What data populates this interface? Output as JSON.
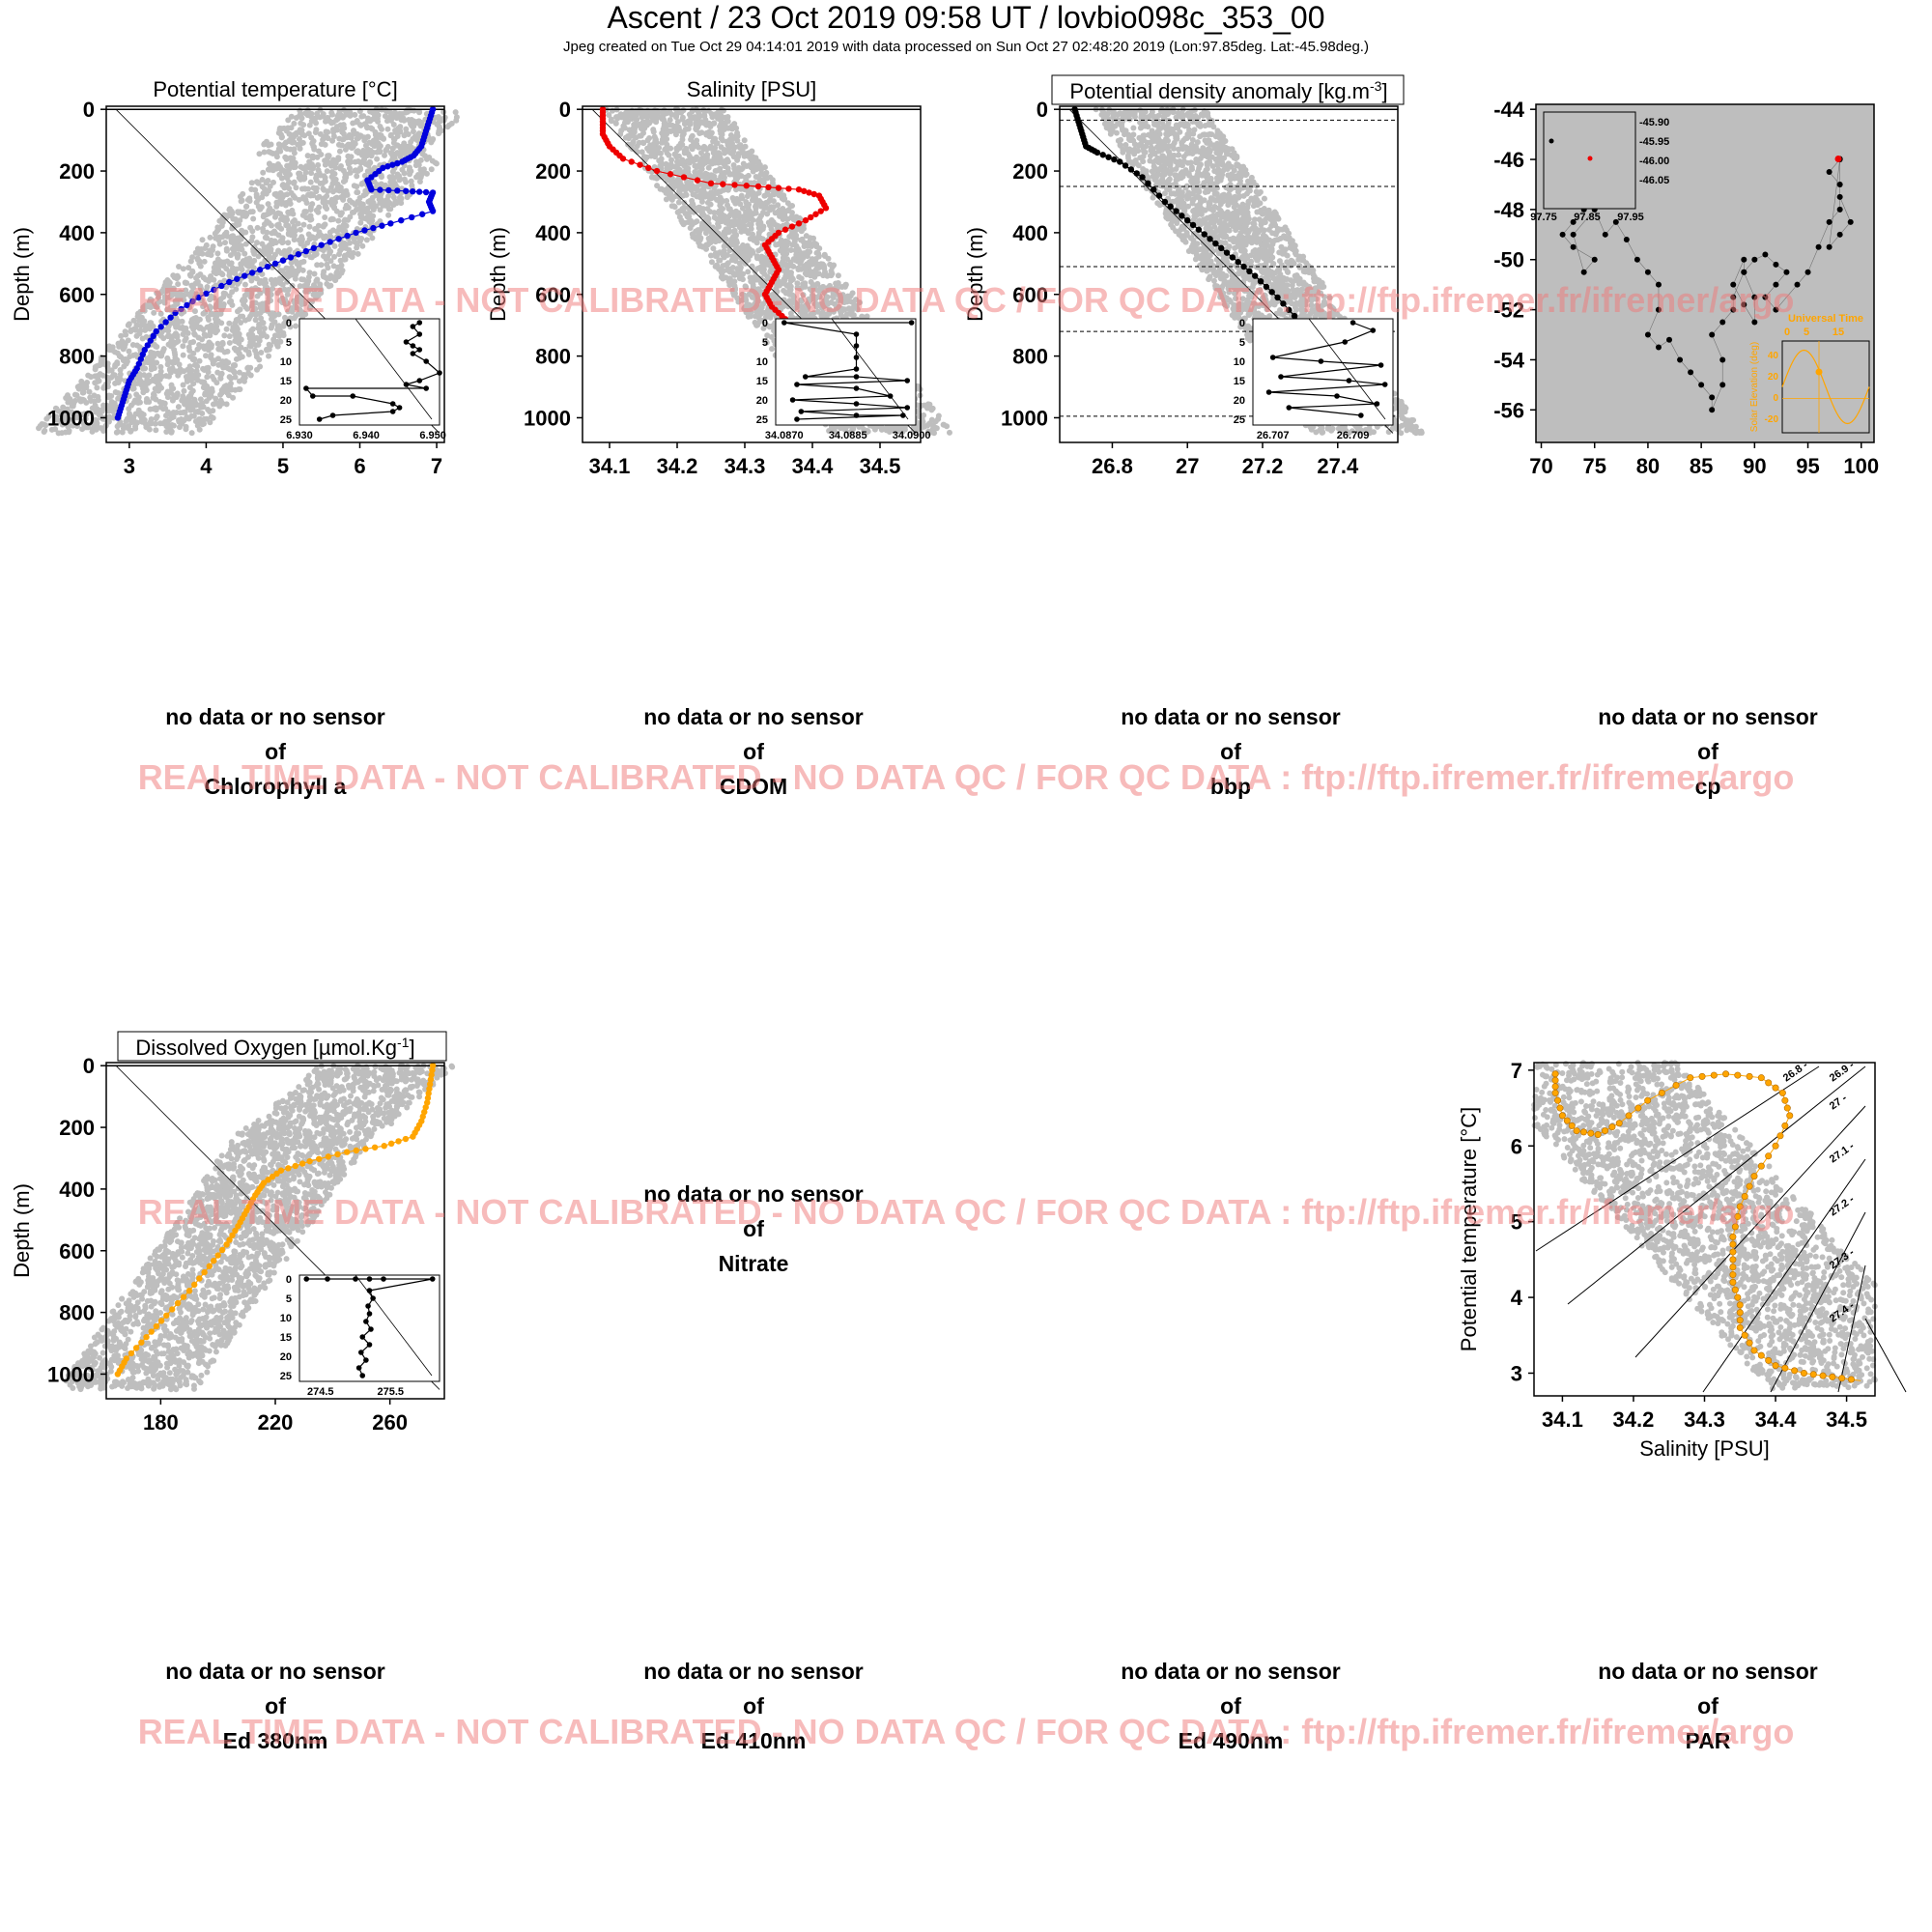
{
  "header": {
    "title": "Ascent / 23 Oct 2019 09:58 UT /  lovbio098c_353_00",
    "subtitle": "Jpeg created on Tue Oct 29 04:14:01 2019 with data processed on Sun Oct 27 02:48:20 2019 (Lon:97.85deg. Lat:-45.98deg.)"
  },
  "watermark": "REAL TIME DATA - NOT CALIBRATED - NO DATA QC   /  FOR QC DATA : ftp://ftp.ifremer.fr/ifremer/argo",
  "colors": {
    "temperature": "#0000dd",
    "salinity": "#ee0000",
    "density": "#000000",
    "oxygen": "#ffa500",
    "background_cloud": "#bebebe",
    "watermark": "#f07878"
  },
  "no_data": {
    "line1": "no data or no sensor",
    "line2": "of",
    "chlorophyll": "Chlorophyll a",
    "cdom": "CDOM",
    "bbp": "bbp",
    "cp": "cp",
    "nitrate": "Nitrate",
    "ed380": "Ed 380nm",
    "ed410": "Ed 410nm",
    "ed490": "Ed 490nm",
    "par": "PAR"
  },
  "chart_data": [
    {
      "id": "temperature",
      "type": "scatter",
      "title": "Potential temperature [°C]",
      "ylabel": "Depth (m)",
      "xlim": [
        2.7,
        7.1
      ],
      "ylim": [
        1080,
        -10
      ],
      "xticks": [
        3,
        4,
        5,
        6,
        7
      ],
      "yticks": [
        0,
        200,
        400,
        600,
        800,
        1000
      ],
      "profile": {
        "x": [
          6.95,
          6.9,
          6.85,
          6.8,
          6.7,
          6.55,
          6.3,
          6.1,
          6.15,
          6.6,
          6.95,
          6.9,
          6.95,
          6.4,
          5.95,
          5.5,
          5.1,
          4.7,
          4.3,
          3.9,
          3.6,
          3.35,
          3.2,
          3.1,
          3.0,
          2.95,
          2.9,
          2.85
        ],
        "y": [
          0,
          40,
          80,
          120,
          150,
          170,
          190,
          230,
          260,
          265,
          270,
          300,
          330,
          370,
          400,
          440,
          480,
          520,
          560,
          610,
          660,
          720,
          780,
          840,
          880,
          920,
          960,
          1000
        ]
      },
      "inset": {
        "xlim": [
          6.93,
          6.951
        ],
        "ylim": [
          25,
          0
        ],
        "xticks": [
          "6.930",
          "6.940",
          "6.950"
        ],
        "yticks": [
          0,
          5,
          10,
          15,
          20,
          25
        ],
        "x": [
          6.948,
          6.947,
          6.948,
          6.946,
          6.947,
          6.948,
          6.947,
          6.949,
          6.951,
          6.948,
          6.946,
          6.949,
          6.931,
          6.932,
          6.938,
          6.944,
          6.945,
          6.944,
          6.935,
          6.933
        ],
        "y": [
          0,
          1,
          3,
          5,
          6,
          7,
          8,
          10,
          13,
          15,
          16,
          17,
          17,
          19,
          19,
          21,
          22,
          23,
          24,
          25
        ]
      }
    },
    {
      "id": "salinity",
      "type": "scatter",
      "title": "Salinity [PSU]",
      "ylabel": "Depth (m)",
      "xlim": [
        34.06,
        34.56
      ],
      "ylim": [
        1080,
        -10
      ],
      "xticks": [
        34.1,
        34.2,
        34.3,
        34.4,
        34.5
      ],
      "yticks": [
        0,
        200,
        400,
        600,
        800,
        1000
      ],
      "profile": {
        "x": [
          34.09,
          34.09,
          34.09,
          34.1,
          34.12,
          34.17,
          34.25,
          34.32,
          34.38,
          34.41,
          34.42,
          34.39,
          34.35,
          34.33,
          34.34,
          34.35,
          34.34,
          34.33,
          34.34,
          34.36,
          34.38,
          34.41,
          34.44,
          34.47,
          34.5,
          34.53
        ],
        "y": [
          0,
          40,
          80,
          120,
          160,
          200,
          240,
          250,
          260,
          280,
          320,
          360,
          400,
          440,
          480,
          520,
          560,
          600,
          640,
          680,
          720,
          780,
          840,
          900,
          950,
          1000
        ]
      },
      "inset": {
        "xlim": [
          34.0868,
          34.0901
        ],
        "ylim": [
          25,
          0
        ],
        "xticks": [
          "34.0870",
          "34.0885",
          "34.0900"
        ],
        "yticks": [
          0,
          5,
          10,
          15,
          20,
          25
        ],
        "x": [
          34.09,
          34.087,
          34.0887,
          34.0887,
          34.0887,
          34.0887,
          34.0875,
          34.0887,
          34.0899,
          34.0873,
          34.0887,
          34.0895,
          34.0872,
          34.0887,
          34.0899,
          34.0874,
          34.0887,
          34.0898,
          34.0873
        ],
        "y": [
          0,
          0,
          3,
          6,
          9,
          12,
          14,
          14,
          15,
          16,
          17,
          19,
          20,
          21,
          22,
          23,
          24,
          24,
          25
        ]
      }
    },
    {
      "id": "density",
      "type": "scatter",
      "title": "Potential density anomaly [kg.m-3]",
      "ylabel": "Depth (m)",
      "xlim": [
        26.66,
        27.56
      ],
      "ylim": [
        1080,
        -10
      ],
      "xticks": [
        26.8,
        27.0,
        27.2,
        27.4
      ],
      "yticks": [
        0,
        200,
        400,
        600,
        800,
        1000
      ],
      "mld_lines": [
        35,
        250,
        510,
        720,
        995
      ],
      "profile": {
        "x": [
          26.7,
          26.71,
          26.72,
          26.73,
          26.76,
          26.82,
          26.88,
          26.94,
          27.0,
          27.06,
          27.12,
          27.18,
          27.24,
          27.3,
          27.36,
          27.42,
          27.48,
          27.53
        ],
        "y": [
          0,
          40,
          80,
          120,
          140,
          170,
          220,
          300,
          360,
          420,
          480,
          540,
          610,
          690,
          770,
          850,
          930,
          1000
        ]
      },
      "inset": {
        "xlim": [
          26.7065,
          26.71
        ],
        "ylim": [
          25,
          0
        ],
        "xticks": [
          "26.707",
          "26.709"
        ],
        "yticks": [
          0,
          5,
          10,
          15,
          20,
          25
        ],
        "x": [
          26.709,
          26.7095,
          26.7088,
          26.707,
          26.7082,
          26.7097,
          26.7072,
          26.7089,
          26.7098,
          26.7069,
          26.7086,
          26.7096,
          26.7074,
          26.7092
        ],
        "y": [
          0,
          2,
          5,
          9,
          10,
          11,
          14,
          15,
          16,
          18,
          19,
          21,
          22,
          24
        ]
      }
    },
    {
      "id": "map",
      "type": "scatter",
      "title": "",
      "xlim": [
        69.5,
        101.2
      ],
      "ylim": [
        -57.3,
        -43.8
      ],
      "xticks": [
        70,
        75,
        80,
        85,
        90,
        95,
        100
      ],
      "yticks": [
        -44,
        -46,
        -48,
        -50,
        -52,
        -54,
        -56
      ],
      "track": {
        "lon": [
          74,
          73,
          72,
          73,
          75,
          74,
          73,
          75,
          76,
          77,
          78,
          79,
          80,
          81,
          81,
          80,
          81,
          82,
          83,
          84,
          85,
          86,
          86,
          87,
          87,
          86,
          87,
          88,
          88,
          89,
          89,
          88,
          89,
          90,
          90,
          89,
          90,
          91,
          92,
          93,
          92,
          91,
          92,
          94,
          95,
          96,
          97,
          98,
          98,
          97,
          98,
          98,
          99,
          98,
          97,
          98
        ],
        "lat": [
          -48,
          -48.5,
          -49,
          -49.5,
          -50,
          -50.5,
          -49,
          -48,
          -49,
          -48.5,
          -49.2,
          -50,
          -50.5,
          -51,
          -52,
          -53,
          -53.5,
          -53.2,
          -54,
          -54.5,
          -55,
          -55.5,
          -56,
          -55,
          -54,
          -53,
          -52.5,
          -52,
          -51.5,
          -50.5,
          -50,
          -51,
          -51.8,
          -52.5,
          -51.5,
          -50.5,
          -50,
          -49.8,
          -50.2,
          -50.5,
          -51,
          -51.5,
          -52,
          -51,
          -50.5,
          -49.5,
          -48.5,
          -48,
          -47,
          -46.5,
          -46,
          -47.5,
          -48.5,
          -49,
          -49.5,
          -45.98
        ]
      },
      "last_position": {
        "lon": 97.85,
        "lat": -45.98
      },
      "inset": {
        "xlim": [
          97.75,
          97.95
        ],
        "ylim": [
          -46.08,
          -45.88
        ],
        "xticks": [
          "97.75",
          "97.85",
          "97.95"
        ],
        "yticks": [
          "-45.90",
          "-45.95",
          "-46.00",
          "-46.05"
        ]
      },
      "sun_inset": {
        "title": "Universal Time",
        "ylabel": "Solar Elevation (deg)",
        "xticks": [
          0,
          5,
          15
        ],
        "yticks": [
          40,
          20,
          0,
          -20
        ]
      }
    },
    {
      "id": "oxygen",
      "type": "scatter",
      "title": "Dissolved Oxygen [µmol.Kg-1]",
      "ylabel": "Depth (m)",
      "xlim": [
        161,
        279
      ],
      "ylim": [
        1080,
        -10
      ],
      "xticks": [
        180,
        220,
        260
      ],
      "yticks": [
        0,
        200,
        400,
        600,
        800,
        1000
      ],
      "profile": {
        "x": [
          275,
          274,
          273,
          271,
          268,
          258,
          245,
          232,
          222,
          216,
          213,
          210,
          207,
          203,
          197,
          190,
          182,
          175,
          168,
          165
        ],
        "y": [
          0,
          60,
          120,
          180,
          230,
          260,
          280,
          310,
          340,
          380,
          420,
          470,
          520,
          580,
          650,
          730,
          810,
          880,
          950,
          1000
        ]
      },
      "inset": {
        "xlim": [
          274.2,
          276.2
        ],
        "ylim": [
          25,
          0
        ],
        "xticks": [
          "274.5",
          "275.5"
        ],
        "yticks": [
          0,
          5,
          10,
          15,
          20,
          25
        ],
        "x": [
          274.3,
          274.6,
          275.0,
          275.2,
          275.4,
          276.1,
          275.2,
          275.25,
          275.18,
          275.2,
          275.15,
          275.22,
          275.1,
          275.2,
          275.08,
          275.15,
          275.05,
          275.1
        ],
        "y": [
          0,
          0,
          0,
          0,
          0,
          0,
          3,
          5,
          7,
          9,
          11,
          13,
          15,
          17,
          19,
          21,
          23,
          25
        ]
      }
    },
    {
      "id": "ts",
      "type": "scatter",
      "title": "",
      "xlabel": "Salinity [PSU]",
      "ylabel": "Potential temperature [°C]",
      "xlim": [
        34.06,
        34.54
      ],
      "ylim": [
        2.7,
        7.1
      ],
      "xticks": [
        34.1,
        34.2,
        34.3,
        34.4,
        34.5
      ],
      "yticks": [
        3,
        4,
        5,
        6,
        7
      ],
      "isopycnals": [
        "26.8",
        "26.9",
        "27",
        "27.1",
        "27.2",
        "27.3",
        "27.4"
      ],
      "profile": {
        "x": [
          34.09,
          34.09,
          34.1,
          34.12,
          34.15,
          34.18,
          34.22,
          34.28,
          34.33,
          34.38,
          34.41,
          34.42,
          34.4,
          34.37,
          34.35,
          34.34,
          34.34,
          34.34,
          34.35,
          34.35,
          34.37,
          34.4,
          34.44,
          34.48,
          34.52
        ],
        "y": [
          6.95,
          6.7,
          6.4,
          6.2,
          6.15,
          6.3,
          6.6,
          6.9,
          6.95,
          6.9,
          6.7,
          6.4,
          6.0,
          5.6,
          5.2,
          4.8,
          4.5,
          4.2,
          3.9,
          3.6,
          3.3,
          3.1,
          3.0,
          2.95,
          2.9
        ]
      }
    }
  ]
}
